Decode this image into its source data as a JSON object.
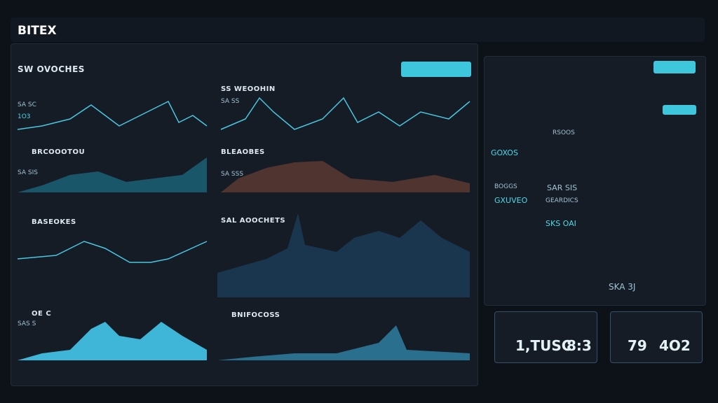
{
  "header": {
    "brand": "BITEX"
  },
  "panels": [
    {
      "title": "SW OVOCHES",
      "lines": [
        "SA SC",
        "1O3"
      ]
    },
    {
      "title": "SS WEOOHIN",
      "lines": [
        "SA SS"
      ]
    },
    {
      "title": "BRCOOOTOU",
      "lines": [
        "SA SIS"
      ]
    },
    {
      "title": "BLEAOBES",
      "lines": [
        "SA SSS"
      ]
    },
    {
      "title": "BASEOKES",
      "lines": []
    },
    {
      "title": "SAL AOOCHETS",
      "lines": []
    },
    {
      "title": "OE C",
      "lines": [
        "SAS S"
      ]
    },
    {
      "title": "BNIFOCOSS",
      "lines": []
    }
  ],
  "cards": [
    {
      "title": "RSOOS",
      "value": "GOXOS"
    },
    {
      "title": "BOGGS",
      "value": "GXUVEO"
    },
    {
      "title": "SAR SIS",
      "value": "GEARDICS"
    },
    {
      "title": "SKS OAI",
      "value": "SKA 3J"
    }
  ],
  "tickers": [
    {
      "value": "1,TUSC"
    },
    {
      "value": "8:3"
    },
    {
      "value": "79"
    },
    {
      "value": "4O2"
    }
  ]
}
